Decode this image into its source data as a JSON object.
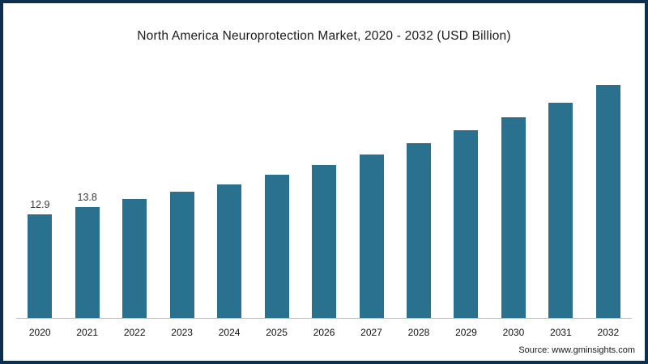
{
  "colors": {
    "bar": "#2a708f",
    "frame": "#0e3050",
    "axis": "#b9b9b9"
  },
  "source": {
    "text": "Source: www.gminsights.com"
  },
  "chart_data": {
    "type": "bar",
    "title": "North America Neuroprotection Market, 2020 - 2032 (USD Billion)",
    "categories": [
      "2020",
      "2021",
      "2022",
      "2023",
      "2024",
      "2025",
      "2026",
      "2027",
      "2028",
      "2029",
      "2030",
      "2031",
      "2032"
    ],
    "values": [
      12.9,
      13.8,
      14.8,
      15.7,
      16.7,
      17.9,
      19.1,
      20.4,
      21.8,
      23.4,
      25.0,
      26.9,
      29.1
    ],
    "data_labels": [
      "12.9",
      "13.8",
      "",
      "",
      "",
      "",
      "",
      "",
      "",
      "",
      "",
      "",
      ""
    ],
    "xlabel": "",
    "ylabel": "",
    "ylim": [
      0,
      32
    ],
    "grid": false,
    "legend": false,
    "bar_color": "#2a708f"
  }
}
